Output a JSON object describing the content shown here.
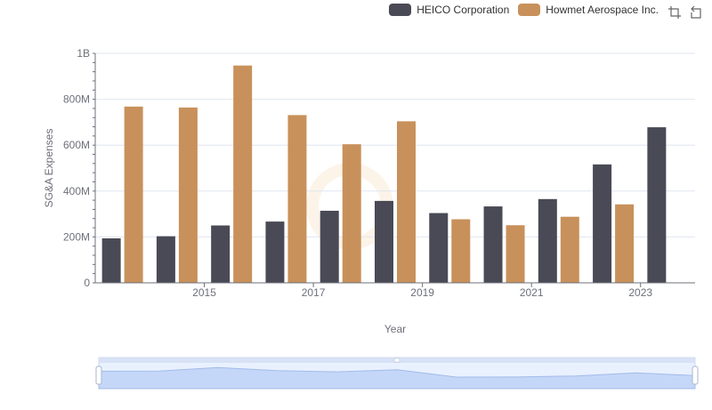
{
  "legend": {
    "items": [
      {
        "label": "HEICO Corporation",
        "color": "#4a4a56"
      },
      {
        "label": "Howmet Aerospace Inc.",
        "color": "#c8915b"
      }
    ]
  },
  "toolbox": {
    "icons": [
      "zoom-icon",
      "restore-icon"
    ]
  },
  "chart_data": {
    "type": "bar",
    "categories": [
      "2014",
      "2015",
      "2016",
      "2017",
      "2018",
      "2019",
      "2020",
      "2021",
      "2022",
      "2023",
      "2024"
    ],
    "x_tick_labels": [
      "2015",
      "2017",
      "2019",
      "2021",
      "2023"
    ],
    "series": [
      {
        "name": "HEICO Corporation",
        "color": "#4a4a56",
        "values": [
          194000000,
          203000000,
          250000000,
          267000000,
          314000000,
          357000000,
          304000000,
          333000000,
          365000000,
          516000000,
          678000000
        ]
      },
      {
        "name": "Howmet Aerospace Inc.",
        "color": "#c8915b",
        "values": [
          768000000,
          764000000,
          947000000,
          731000000,
          604000000,
          704000000,
          277000000,
          251000000,
          288000000,
          342000000,
          null
        ]
      }
    ],
    "xlabel": "Year",
    "ylabel": "SG&A Expenses",
    "ylim": [
      0,
      1000000000
    ],
    "y_ticks": [
      {
        "value": 0,
        "label": "0"
      },
      {
        "value": 200000000,
        "label": "200M"
      },
      {
        "value": 400000000,
        "label": "400M"
      },
      {
        "value": 600000000,
        "label": "600M"
      },
      {
        "value": 800000000,
        "label": "800M"
      },
      {
        "value": 1000000000,
        "label": "1B"
      }
    ],
    "grid": true,
    "legend_position": "top-right",
    "data_zoom": true
  }
}
